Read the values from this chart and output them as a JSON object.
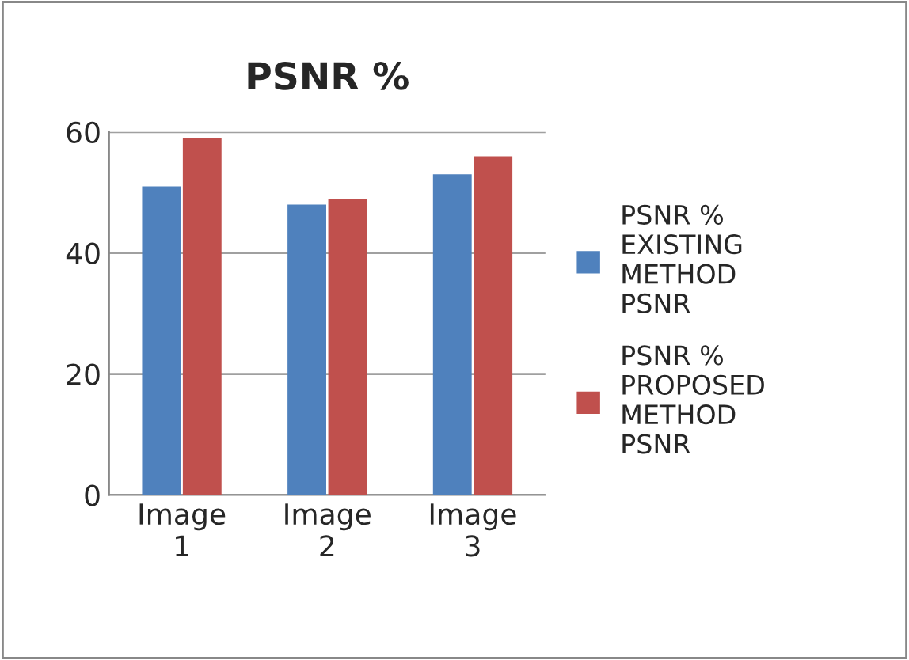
{
  "chart_data": {
    "type": "bar",
    "title": "PSNR %",
    "categories": [
      "Image 1",
      "Image 2",
      "Image 3"
    ],
    "series": [
      {
        "name": "PSNR % EXISTING METHOD PSNR",
        "color": "#4f81bd",
        "values": [
          51,
          48,
          53
        ]
      },
      {
        "name": "PSNR % PROPOSED METHOD PSNR",
        "color": "#c0504d",
        "values": [
          59,
          49,
          56
        ]
      }
    ],
    "ylim": [
      0,
      60
    ],
    "yticks": [
      0,
      20,
      40,
      60
    ],
    "grid": "y",
    "legend": "right"
  }
}
